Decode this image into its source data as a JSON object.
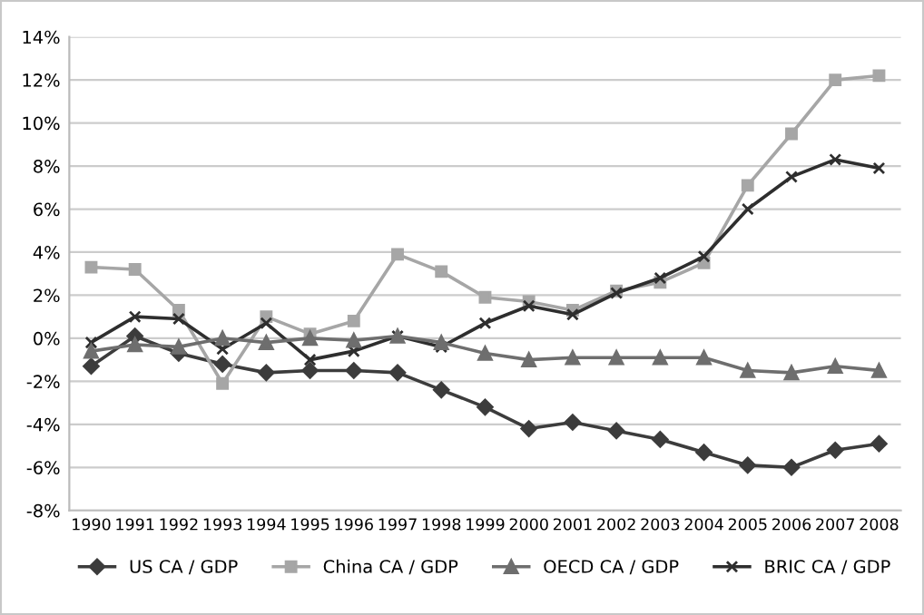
{
  "chart_data": {
    "type": "line",
    "categories": [
      "1990",
      "1991",
      "1992",
      "1993",
      "1994",
      "1995",
      "1996",
      "1997",
      "1998",
      "1999",
      "2000",
      "2001",
      "2002",
      "2003",
      "2004",
      "2005",
      "2006",
      "2007",
      "2008"
    ],
    "series": [
      {
        "name": "US CA / GDP",
        "color": "#3c3c3c",
        "marker": "diamond",
        "values": [
          -1.3,
          0.1,
          -0.7,
          -1.2,
          -1.6,
          -1.5,
          -1.5,
          -1.6,
          -2.4,
          -3.2,
          -4.2,
          -3.9,
          -4.3,
          -4.7,
          -5.3,
          -5.9,
          -6.0,
          -5.2,
          -4.9
        ]
      },
      {
        "name": "China CA / GDP",
        "color": "#a6a6a6",
        "marker": "square",
        "values": [
          3.3,
          3.2,
          1.3,
          -2.1,
          1.0,
          0.2,
          0.8,
          3.9,
          3.1,
          1.9,
          1.7,
          1.3,
          2.2,
          2.6,
          3.5,
          7.1,
          9.5,
          12.0,
          12.2
        ]
      },
      {
        "name": "OECD CA / GDP",
        "color": "#6e6e6e",
        "marker": "triangle",
        "values": [
          -0.6,
          -0.3,
          -0.4,
          0.0,
          -0.2,
          0.0,
          -0.1,
          0.1,
          -0.2,
          -0.7,
          -1.0,
          -0.9,
          -0.9,
          -0.9,
          -0.9,
          -1.5,
          -1.6,
          -1.3,
          -1.5
        ]
      },
      {
        "name": "BRIC CA / GDP",
        "color": "#2e2e2e",
        "marker": "cross",
        "values": [
          -0.2,
          1.0,
          0.9,
          -0.5,
          0.7,
          -1.0,
          -0.6,
          0.1,
          -0.4,
          0.7,
          1.5,
          1.1,
          2.1,
          2.8,
          3.8,
          6.0,
          7.5,
          8.3,
          7.9
        ]
      }
    ],
    "ylim": [
      -8,
      14
    ],
    "yticks": [
      {
        "value": -8,
        "label": "-8%"
      },
      {
        "value": -6,
        "label": "-6%"
      },
      {
        "value": -4,
        "label": "-4%"
      },
      {
        "value": -2,
        "label": "-2%"
      },
      {
        "value": 0,
        "label": "0%"
      },
      {
        "value": 2,
        "label": "2%"
      },
      {
        "value": 4,
        "label": "4%"
      },
      {
        "value": 6,
        "label": "6%"
      },
      {
        "value": 8,
        "label": "8%"
      },
      {
        "value": 10,
        "label": "10%"
      },
      {
        "value": 12,
        "label": "12%"
      },
      {
        "value": 14,
        "label": "14%"
      }
    ],
    "grid": "y",
    "legend": "bottom",
    "line_style": "solid"
  }
}
